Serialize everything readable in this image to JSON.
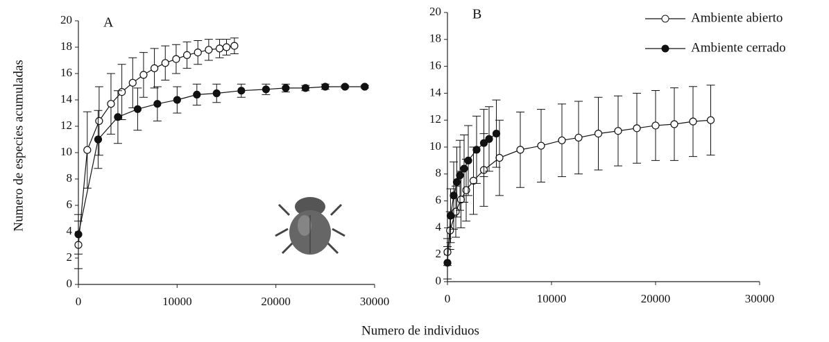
{
  "chart_data": [
    {
      "type": "line",
      "panel_label": "A",
      "ylabel": "Numero de especies acumuladas",
      "xlabel": "Numero de individuos",
      "xlim": [
        0,
        30000
      ],
      "ylim": [
        0,
        20
      ],
      "xticks": [
        0,
        10000,
        20000,
        30000
      ],
      "yticks": [
        0,
        2,
        4,
        6,
        8,
        10,
        12,
        14,
        16,
        18,
        20
      ],
      "series": [
        {
          "marker": "open",
          "color": "#111",
          "x": [
            0,
            900,
            2100,
            3300,
            4400,
            5500,
            6600,
            7700,
            8800,
            9900,
            11000,
            12100,
            13200,
            14300,
            15000,
            15800
          ],
          "values": [
            3.0,
            10.2,
            12.4,
            13.7,
            14.6,
            15.3,
            15.9,
            16.4,
            16.8,
            17.1,
            17.4,
            17.6,
            17.8,
            17.9,
            18.0,
            18.1
          ],
          "errors": [
            1.8,
            2.9,
            2.6,
            2.3,
            2.1,
            1.9,
            1.7,
            1.5,
            1.3,
            1.1,
            1.0,
            0.9,
            0.8,
            0.7,
            0.6,
            0.6
          ]
        },
        {
          "marker": "filled",
          "color": "#111",
          "x": [
            0,
            2000,
            4000,
            6000,
            8000,
            10000,
            12000,
            14000,
            16500,
            19000,
            21000,
            23000,
            25000,
            27000,
            29000
          ],
          "values": [
            3.8,
            11.0,
            12.7,
            13.3,
            13.7,
            14.0,
            14.4,
            14.5,
            14.7,
            14.8,
            14.9,
            14.9,
            15.0,
            15.0,
            15.0
          ],
          "errors": [
            1.5,
            2.2,
            2.0,
            1.6,
            1.3,
            1.0,
            0.8,
            0.7,
            0.5,
            0.4,
            0.3,
            0.2,
            0.2,
            0.1,
            0.1
          ]
        }
      ]
    },
    {
      "type": "line",
      "panel_label": "B",
      "xlim": [
        0,
        30000
      ],
      "ylim": [
        0,
        20
      ],
      "xticks": [
        0,
        10000,
        20000,
        30000
      ],
      "yticks": [
        0,
        2,
        4,
        6,
        8,
        10,
        12,
        14,
        16,
        18,
        20
      ],
      "legend": "upper right",
      "series": [
        {
          "name": "Ambiente abierto",
          "marker": "open",
          "color": "#111",
          "x": [
            0,
            250,
            800,
            1300,
            1800,
            2500,
            3500,
            5000,
            7000,
            9000,
            11000,
            12600,
            14500,
            16400,
            18200,
            20000,
            21800,
            23600,
            25300
          ],
          "values": [
            2.2,
            3.8,
            5.2,
            6.1,
            6.8,
            7.5,
            8.3,
            9.2,
            9.8,
            10.1,
            10.5,
            10.7,
            11.0,
            11.2,
            11.4,
            11.6,
            11.7,
            11.9,
            12.0
          ],
          "errors": [
            1.0,
            1.4,
            1.9,
            2.1,
            2.3,
            2.5,
            2.7,
            2.8,
            2.8,
            2.7,
            2.7,
            2.7,
            2.7,
            2.6,
            2.6,
            2.6,
            2.7,
            2.6,
            2.6
          ]
        },
        {
          "name": "Ambiente cerrado",
          "marker": "filled",
          "color": "#111",
          "x": [
            0,
            300,
            600,
            900,
            1200,
            1600,
            2000,
            2800,
            3500,
            4000,
            4700
          ],
          "values": [
            1.4,
            4.9,
            6.4,
            7.4,
            7.9,
            8.4,
            9.0,
            9.8,
            10.3,
            10.6,
            11.0
          ],
          "errors": [
            1.2,
            2.0,
            2.5,
            2.6,
            2.6,
            2.5,
            2.6,
            2.5,
            2.5,
            2.4,
            2.5
          ]
        }
      ]
    }
  ]
}
